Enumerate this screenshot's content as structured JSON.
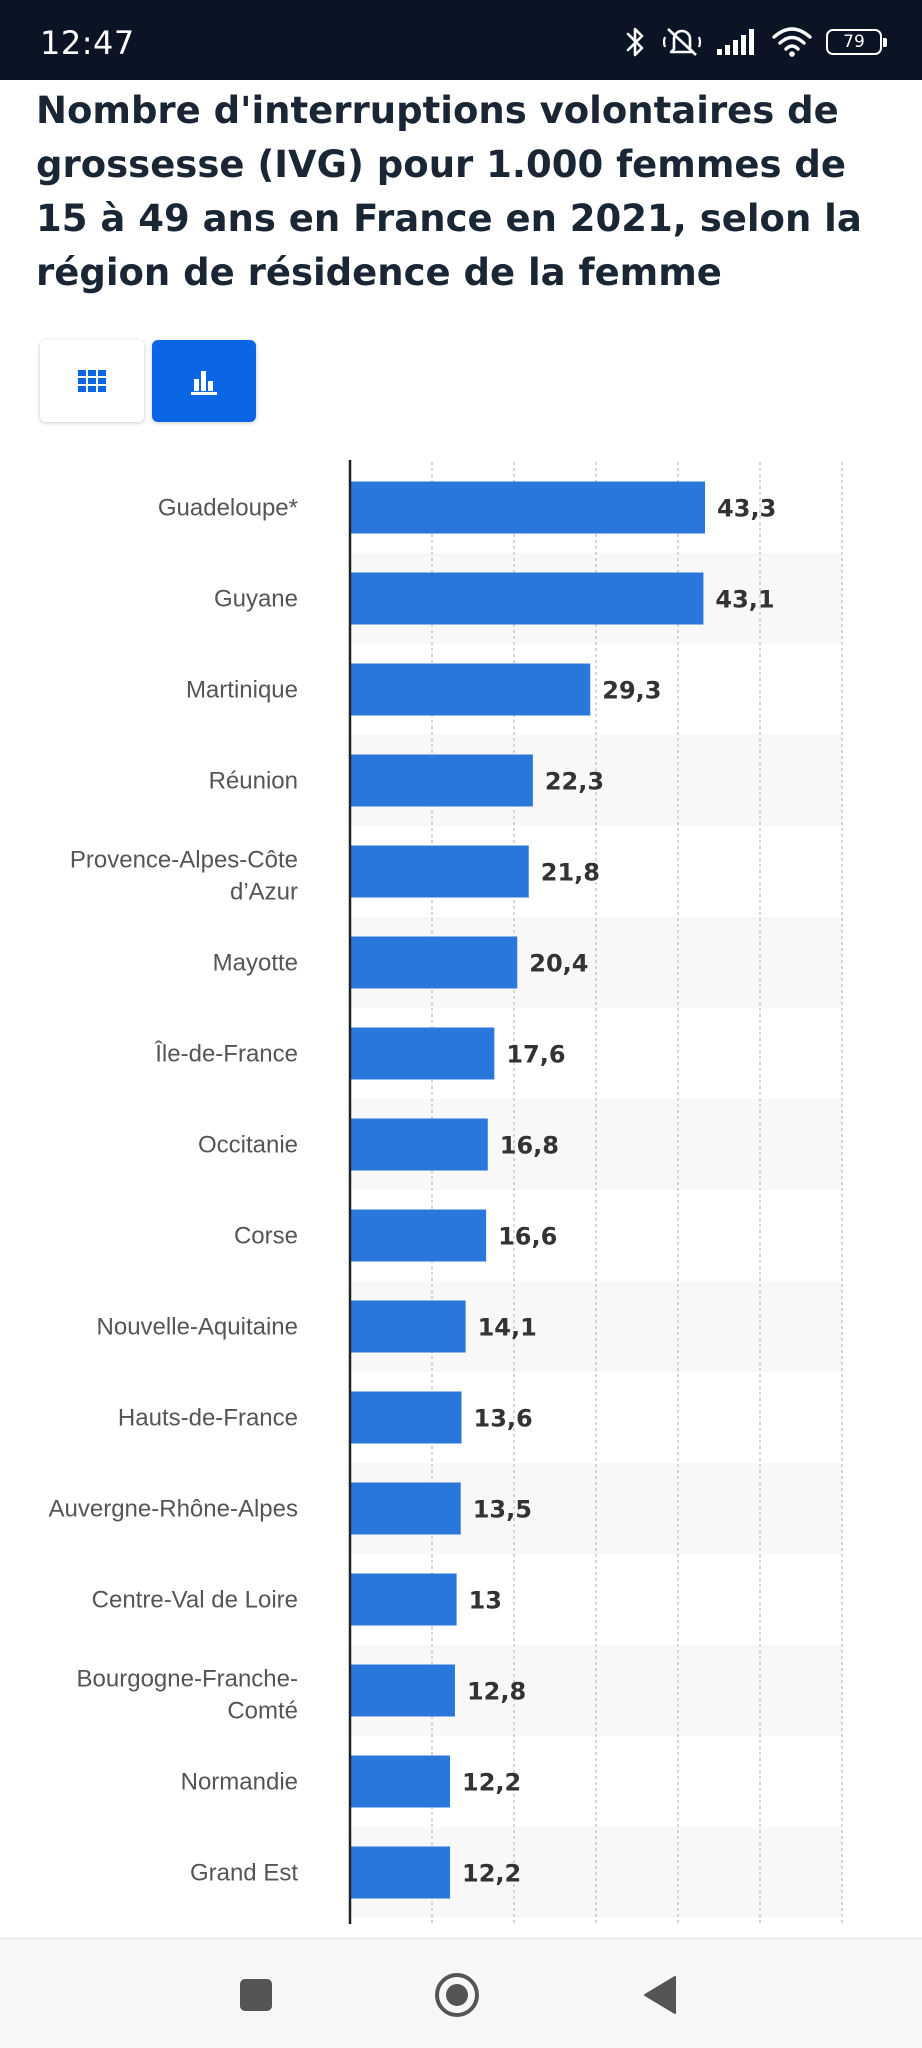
{
  "status_bar": {
    "time": "12:47",
    "battery": "79"
  },
  "page": {
    "title": "Nombre d'interruptions volontaires de grossesse (IVG) pour 1.000 femmes de 15 à 49 ans en France en 2021, selon la région de résidence de la femme"
  },
  "view_toggle": {
    "table_icon": "grid-icon",
    "chart_icon": "bar-chart-icon",
    "active": "chart"
  },
  "colors": {
    "bar": "#2a77dc",
    "accent": "#0a66e4",
    "title": "#1a2634"
  },
  "chart_data": {
    "type": "bar",
    "orientation": "horizontal",
    "categories": [
      "Guadeloupe*",
      "Guyane",
      "Martinique",
      "Réunion",
      "Provence-Alpes-Côte d’Azur",
      "Mayotte",
      "Île-de-France",
      "Occitanie",
      "Corse",
      "Nouvelle-Aquitaine",
      "Hauts-de-France",
      "Auvergne-Rhône-Alpes",
      "Centre-Val de Loire",
      "Bourgogne-Franche-Comté",
      "Normandie",
      "Grand Est"
    ],
    "values": [
      43.3,
      43.1,
      29.3,
      22.3,
      21.8,
      20.4,
      17.6,
      16.8,
      16.6,
      14.1,
      13.6,
      13.5,
      13,
      12.8,
      12.2,
      12.2
    ],
    "value_labels": [
      "43,3",
      "43,1",
      "29,3",
      "22,3",
      "21,8",
      "20,4",
      "17,6",
      "16,8",
      "16,6",
      "14,1",
      "13,6",
      "13,5",
      "13",
      "12,8",
      "12,2",
      "12,2"
    ],
    "xlim": [
      0,
      60
    ],
    "grid": true
  },
  "nav_bar": {
    "recents_icon": "square-icon",
    "home_icon": "circle-icon",
    "back_icon": "back-triangle-icon"
  }
}
